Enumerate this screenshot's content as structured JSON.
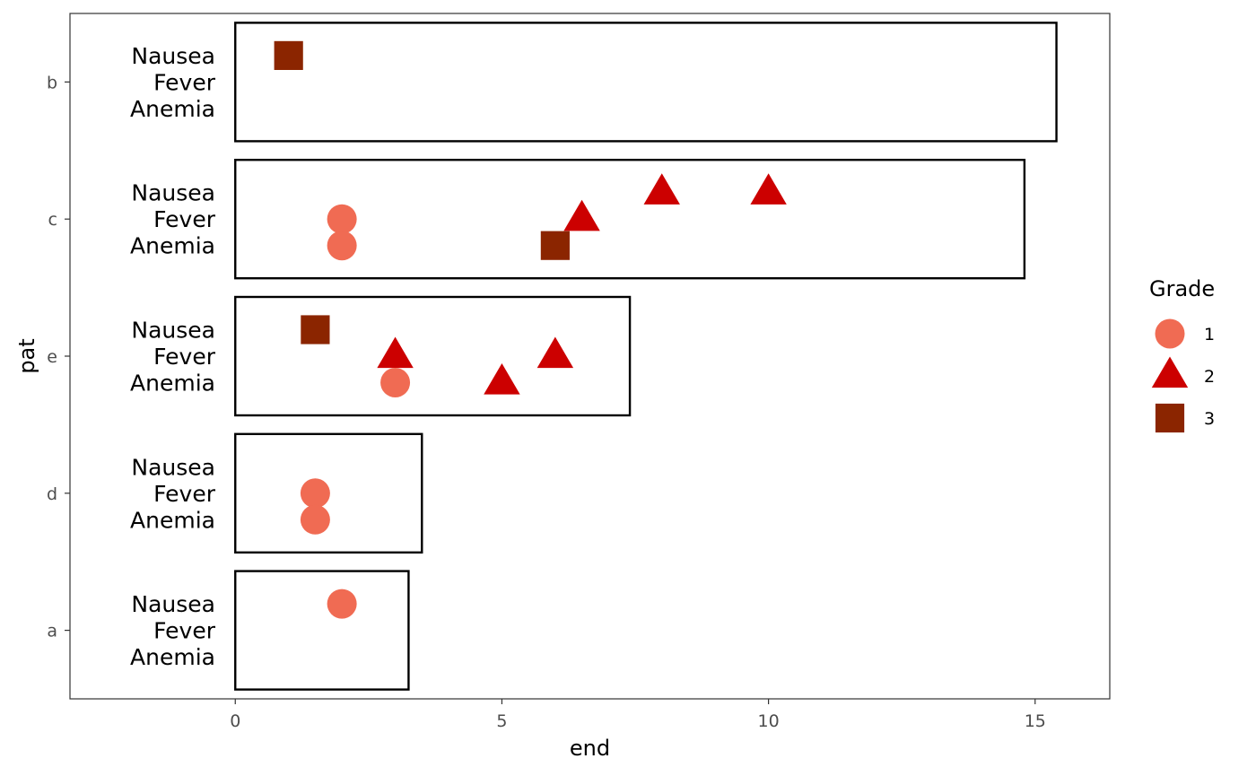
{
  "chart_data": {
    "type": "scatter",
    "xlabel": "end",
    "ylabel": "pat",
    "xlim": [
      -3.1,
      16.4
    ],
    "x_ticks": [
      0,
      5,
      10,
      15
    ],
    "patients": [
      "b",
      "c",
      "e",
      "d",
      "a"
    ],
    "lane_labels": [
      "Nausea",
      "Fever",
      "Anemia"
    ],
    "grid": false,
    "legend": {
      "title": "Grade",
      "position": "right",
      "items": [
        {
          "label": "1",
          "shape": "circle",
          "color": "#F06B53"
        },
        {
          "label": "2",
          "shape": "triangle",
          "color": "#CC0000"
        },
        {
          "label": "3",
          "shape": "square",
          "color": "#8B2500"
        }
      ]
    },
    "bars": [
      {
        "patient": "b",
        "start": 0,
        "end": 15.4
      },
      {
        "patient": "c",
        "start": 0,
        "end": 14.8
      },
      {
        "patient": "e",
        "start": 0,
        "end": 7.4
      },
      {
        "patient": "d",
        "start": 0,
        "end": 3.5
      },
      {
        "patient": "a",
        "start": 0,
        "end": 3.25
      }
    ],
    "events": [
      {
        "patient": "b",
        "event": "Nausea",
        "x": 1.0,
        "grade": "3"
      },
      {
        "patient": "c",
        "event": "Nausea",
        "x": 8.0,
        "grade": "2"
      },
      {
        "patient": "c",
        "event": "Nausea",
        "x": 10.0,
        "grade": "2"
      },
      {
        "patient": "c",
        "event": "Fever",
        "x": 2.0,
        "grade": "1"
      },
      {
        "patient": "c",
        "event": "Fever",
        "x": 6.5,
        "grade": "2"
      },
      {
        "patient": "c",
        "event": "Anemia",
        "x": 2.0,
        "grade": "1"
      },
      {
        "patient": "c",
        "event": "Anemia",
        "x": 6.0,
        "grade": "3"
      },
      {
        "patient": "e",
        "event": "Nausea",
        "x": 1.5,
        "grade": "3"
      },
      {
        "patient": "e",
        "event": "Fever",
        "x": 3.0,
        "grade": "2"
      },
      {
        "patient": "e",
        "event": "Fever",
        "x": 6.0,
        "grade": "2"
      },
      {
        "patient": "e",
        "event": "Anemia",
        "x": 3.0,
        "grade": "1"
      },
      {
        "patient": "e",
        "event": "Anemia",
        "x": 5.0,
        "grade": "2"
      },
      {
        "patient": "d",
        "event": "Fever",
        "x": 1.5,
        "grade": "1"
      },
      {
        "patient": "d",
        "event": "Anemia",
        "x": 1.5,
        "grade": "1"
      },
      {
        "patient": "a",
        "event": "Nausea",
        "x": 2.0,
        "grade": "1"
      }
    ]
  }
}
